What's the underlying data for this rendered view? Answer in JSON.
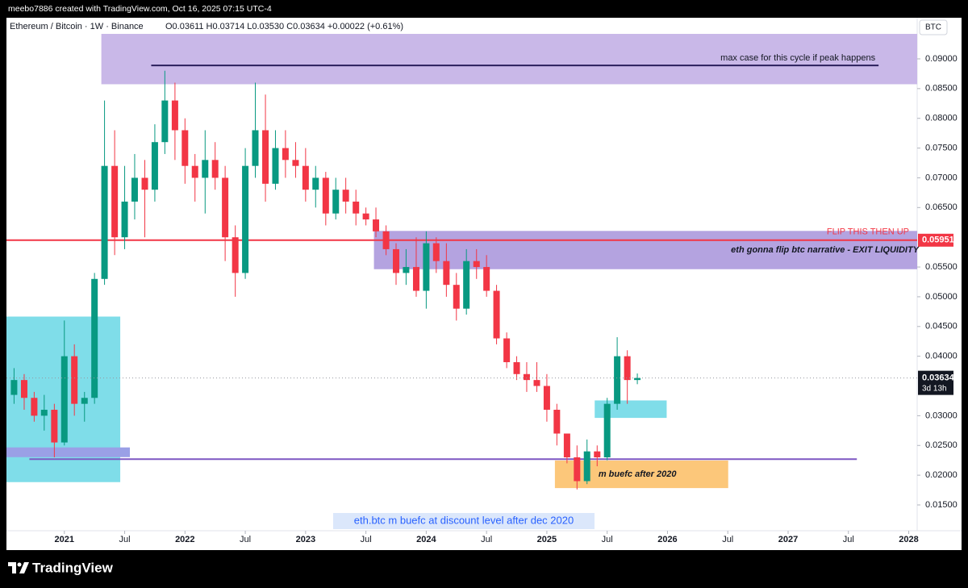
{
  "chart_data": {
    "type": "candlestick",
    "credit": "meebo7886 created with TradingView.com, Oct 16, 2025 07:15 UTC-4",
    "title": "Ethereum / Bitcoin · 1W · Binance",
    "ohlc_readout": [
      "O0.03611",
      "H0.03714",
      "L0.03530",
      "C0.03634",
      "+0.00022 (+0.61%)"
    ],
    "currency": "BTC",
    "logo": "TradingView",
    "up_color": "#089981",
    "down_color": "#f23645",
    "xlim": [
      2020.52,
      2028.07
    ],
    "ylim": [
      0.01066,
      0.0942
    ],
    "grid": false,
    "xticks": [
      2021,
      {
        "value": 2021.5,
        "label": "Jul"
      },
      2022,
      {
        "value": 2022.5,
        "label": "Jul"
      },
      2023,
      {
        "value": 2023.5,
        "label": "Jul"
      },
      2024,
      {
        "value": 2024.5,
        "label": "Jul"
      },
      2025,
      {
        "value": 2025.5,
        "label": "Jul"
      },
      2026,
      {
        "value": 2026.5,
        "label": "Jul"
      },
      2027,
      {
        "value": 2027.5,
        "label": "Jul"
      },
      2028
    ],
    "yticks": [
      {
        "value": 0.015,
        "label": "0.01500"
      },
      {
        "value": 0.02,
        "label": "0.02000"
      },
      {
        "value": 0.025,
        "label": "0.02500"
      },
      {
        "value": 0.03,
        "label": "0.03000"
      },
      {
        "value": 0.04,
        "label": "0.04000"
      },
      {
        "value": 0.045,
        "label": "0.04500"
      },
      {
        "value": 0.05,
        "label": "0.05000"
      },
      {
        "value": 0.055,
        "label": "0.05500"
      },
      {
        "value": 0.065,
        "label": "0.06500"
      },
      {
        "value": 0.07,
        "label": "0.07000"
      },
      {
        "value": 0.075,
        "label": "0.07500"
      },
      {
        "value": 0.08,
        "label": "0.08000"
      },
      {
        "value": 0.085,
        "label": "0.08500"
      },
      {
        "value": 0.09,
        "label": "0.09000"
      }
    ],
    "x": [
      2020.583,
      2020.667,
      2020.75,
      2020.833,
      2020.917,
      2021,
      2021.083,
      2021.167,
      2021.25,
      2021.333,
      2021.417,
      2021.5,
      2021.583,
      2021.667,
      2021.75,
      2021.833,
      2021.917,
      2022,
      2022.083,
      2022.167,
      2022.25,
      2022.333,
      2022.417,
      2022.5,
      2022.583,
      2022.667,
      2022.75,
      2022.833,
      2022.917,
      2023,
      2023.083,
      2023.167,
      2023.25,
      2023.333,
      2023.417,
      2023.5,
      2023.583,
      2023.667,
      2023.75,
      2023.833,
      2023.917,
      2024,
      2024.083,
      2024.167,
      2024.25,
      2024.333,
      2024.417,
      2024.5,
      2024.583,
      2024.667,
      2024.75,
      2024.833,
      2024.917,
      2025,
      2025.083,
      2025.167,
      2025.25,
      2025.333,
      2025.417,
      2025.5,
      2025.583,
      2025.667,
      2025.75
    ],
    "open": [
      0.0335,
      0.036,
      0.033,
      0.03,
      0.031,
      0.0255,
      0.04,
      0.032,
      0.033,
      0.053,
      0.072,
      0.06,
      0.066,
      0.07,
      0.068,
      0.076,
      0.083,
      0.078,
      0.072,
      0.07,
      0.073,
      0.07,
      0.06,
      0.054,
      0.072,
      0.078,
      0.069,
      0.075,
      0.073,
      0.072,
      0.068,
      0.07,
      0.064,
      0.068,
      0.066,
      0.064,
      0.063,
      0.061,
      0.058,
      0.054,
      0.055,
      0.051,
      0.059,
      0.056,
      0.052,
      0.048,
      0.056,
      0.055,
      0.051,
      0.043,
      0.039,
      0.037,
      0.036,
      0.035,
      0.031,
      0.027,
      0.023,
      0.019,
      0.024,
      0.023,
      0.032,
      0.04,
      0.036
    ],
    "high": [
      0.038,
      0.037,
      0.034,
      0.0335,
      0.032,
      0.046,
      0.042,
      0.034,
      0.054,
      0.083,
      0.078,
      0.072,
      0.074,
      0.073,
      0.079,
      0.088,
      0.086,
      0.08,
      0.074,
      0.078,
      0.076,
      0.072,
      0.062,
      0.075,
      0.086,
      0.084,
      0.078,
      0.078,
      0.076,
      0.075,
      0.072,
      0.071,
      0.07,
      0.07,
      0.068,
      0.065,
      0.065,
      0.062,
      0.059,
      0.058,
      0.06,
      0.061,
      0.06,
      0.059,
      0.054,
      0.058,
      0.058,
      0.057,
      0.052,
      0.044,
      0.04,
      0.039,
      0.039,
      0.037,
      0.032,
      0.027,
      0.025,
      0.026,
      0.025,
      0.033,
      0.0432,
      0.041,
      0.0371
    ],
    "low": [
      0.032,
      0.031,
      0.029,
      0.0275,
      0.023,
      0.025,
      0.03,
      0.029,
      0.032,
      0.052,
      0.057,
      0.058,
      0.063,
      0.06,
      0.066,
      0.074,
      0.073,
      0.069,
      0.066,
      0.064,
      0.068,
      0.056,
      0.05,
      0.053,
      0.07,
      0.066,
      0.068,
      0.07,
      0.07,
      0.066,
      0.065,
      0.062,
      0.063,
      0.064,
      0.062,
      0.062,
      0.06,
      0.057,
      0.052,
      0.052,
      0.05,
      0.048,
      0.054,
      0.05,
      0.046,
      0.047,
      0.053,
      0.05,
      0.042,
      0.038,
      0.036,
      0.034,
      0.034,
      0.029,
      0.025,
      0.022,
      0.0176,
      0.0185,
      0.0215,
      0.0225,
      0.031,
      0.032,
      0.0353
    ],
    "close": [
      0.036,
      0.033,
      0.03,
      0.031,
      0.0255,
      0.04,
      0.032,
      0.033,
      0.053,
      0.072,
      0.06,
      0.066,
      0.07,
      0.068,
      0.076,
      0.083,
      0.078,
      0.072,
      0.07,
      0.073,
      0.07,
      0.06,
      0.054,
      0.072,
      0.078,
      0.069,
      0.075,
      0.073,
      0.072,
      0.068,
      0.07,
      0.064,
      0.068,
      0.066,
      0.064,
      0.063,
      0.061,
      0.058,
      0.054,
      0.055,
      0.051,
      0.059,
      0.056,
      0.052,
      0.048,
      0.056,
      0.055,
      0.051,
      0.043,
      0.039,
      0.037,
      0.036,
      0.035,
      0.031,
      0.027,
      0.023,
      0.019,
      0.024,
      0.023,
      0.032,
      0.04,
      0.036,
      0.03634
    ],
    "last_price": 0.03634,
    "countdown": "3d 13h",
    "hline": {
      "value": 0.05951,
      "color": "#f23645",
      "label": "FLIP THIS THEN UP"
    },
    "drawings": [
      {
        "shape": "rect",
        "x": [
          2021.31,
          2028.07
        ],
        "y": [
          0.0858,
          0.0942
        ],
        "color": "#c9b8e8"
      },
      {
        "shape": "line",
        "x": [
          2021.72,
          2027.75
        ],
        "y": [
          0.0889,
          0.0889
        ],
        "color": "#2a1f5c",
        "label": "max case for this cycle if peak happens"
      },
      {
        "shape": "rect",
        "x": [
          2023.57,
          2028.07
        ],
        "y": [
          0.0547,
          0.061
        ],
        "color": "#b4a3e0",
        "label": "eth gonna flip btc narrative - EXIT LIQUIDITY"
      },
      {
        "shape": "rect",
        "x": [
          2020.52,
          2021.46
        ],
        "y": [
          0.0189,
          0.0466
        ],
        "color": "#7fdde9"
      },
      {
        "shape": "rect",
        "x": [
          2020.52,
          2021.54
        ],
        "y": [
          0.0231,
          0.0246
        ],
        "color": "#9aa0e6"
      },
      {
        "shape": "line",
        "x": [
          2020.71,
          2027.57
        ],
        "y": [
          0.0227,
          0.0227
        ],
        "color": "#7e57c2"
      },
      {
        "shape": "rect",
        "x": [
          2025.4,
          2025.99
        ],
        "y": [
          0.0297,
          0.0325
        ],
        "color": "#7fdde9"
      },
      {
        "shape": "rect",
        "x": [
          2025.07,
          2026.5
        ],
        "y": [
          0.0179,
          0.0224
        ],
        "color": "#fcc77a",
        "label": "m buefc after 2020"
      }
    ],
    "note": "eth.btc m buefc at discount level after dec 2020"
  }
}
